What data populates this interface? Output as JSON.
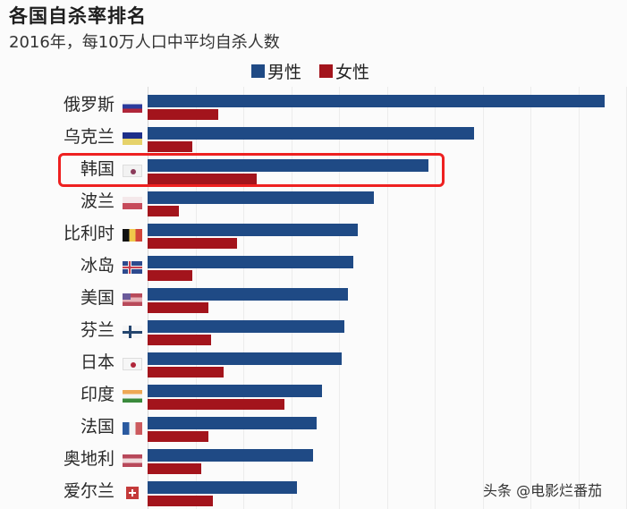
{
  "header": {
    "title": "各国自杀率排名",
    "subtitle": "2016年，每10万人口中平均自杀人数"
  },
  "legend": {
    "male": "男性",
    "female": "女性"
  },
  "colors": {
    "male": "#1f4a85",
    "female": "#a3141c",
    "highlight": "#ee2020"
  },
  "highlighted_country": "韩国",
  "watermark": "头条 @电影烂番茄",
  "chart_data": {
    "type": "bar",
    "orientation": "horizontal",
    "title": "各国自杀率排名",
    "subtitle": "2016年，每10万人口中平均自杀人数",
    "xlabel": "",
    "ylabel": "",
    "xlim": [
      0,
      50
    ],
    "grid": true,
    "grid_step": 5,
    "legend_position": "top",
    "categories": [
      "俄罗斯",
      "乌克兰",
      "韩国",
      "波兰",
      "比利时",
      "冰岛",
      "美国",
      "芬兰",
      "日本",
      "印度",
      "法国",
      "奥地利",
      "爱尔兰"
    ],
    "series": [
      {
        "name": "男性",
        "color": "#1f4a85",
        "values": [
          47.8,
          34.1,
          29.3,
          23.6,
          22.0,
          21.5,
          20.9,
          20.6,
          20.3,
          18.2,
          17.7,
          17.3,
          15.6
        ]
      },
      {
        "name": "女性",
        "color": "#a3141c",
        "values": [
          7.4,
          4.7,
          11.4,
          3.3,
          9.3,
          4.7,
          6.4,
          6.6,
          7.9,
          14.3,
          6.4,
          5.6,
          6.8
        ]
      }
    ],
    "annotations": [
      "韩国 row highlighted with red box"
    ]
  },
  "flags": [
    {
      "country": "俄罗斯",
      "icon": "russia-flag",
      "stripes": [
        "#f4f4f4",
        "#2a3a9c",
        "#b0263a"
      ],
      "dir": "h"
    },
    {
      "country": "乌克兰",
      "icon": "ukraine-flag",
      "stripes": [
        "#1d2f8a",
        "#e6d26a"
      ],
      "dir": "h"
    },
    {
      "country": "韩国",
      "icon": "south-korea-flag",
      "stripes": [
        "#f2f2f2"
      ],
      "dir": "h"
    },
    {
      "country": "波兰",
      "icon": "poland-flag",
      "stripes": [
        "#f4e8ea",
        "#c64a5a"
      ],
      "dir": "h"
    },
    {
      "country": "比利时",
      "icon": "belgium-flag",
      "stripes": [
        "#111111",
        "#f0c84a",
        "#d2453a"
      ],
      "dir": "v"
    },
    {
      "country": "冰岛",
      "icon": "iceland-flag",
      "stripes": [
        "#2d4a8e"
      ],
      "dir": "h"
    },
    {
      "country": "美国",
      "icon": "usa-flag",
      "stripes": [
        "#b84a5a",
        "#e7b3b8",
        "#b84a5a"
      ],
      "dir": "h"
    },
    {
      "country": "芬兰",
      "icon": "finland-flag",
      "stripes": [
        "#f6f6f6"
      ],
      "dir": "h"
    },
    {
      "country": "日本",
      "icon": "japan-flag",
      "stripes": [
        "#f6f6f6"
      ],
      "dir": "h"
    },
    {
      "country": "印度",
      "icon": "india-flag",
      "stripes": [
        "#eea855",
        "#f4f4f4",
        "#3a8a3c"
      ],
      "dir": "h"
    },
    {
      "country": "法国",
      "icon": "france-flag",
      "stripes": [
        "#2a5aa0",
        "#f4f4f4",
        "#cc5a5e"
      ],
      "dir": "v"
    },
    {
      "country": "奥地利",
      "icon": "austria-flag",
      "stripes": [
        "#b8485a",
        "#f1dadd",
        "#b8485a"
      ],
      "dir": "h"
    },
    {
      "country": "爱尔兰",
      "icon": "switzerland-flag",
      "stripes": [
        "#c43a3a"
      ],
      "dir": "h"
    }
  ]
}
